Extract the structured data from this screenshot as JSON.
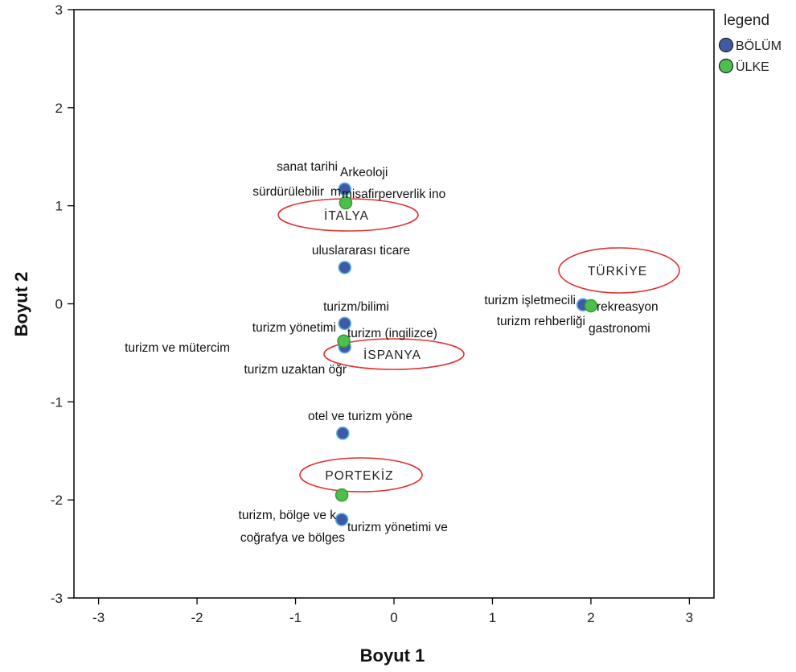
{
  "chart_data": {
    "type": "scatter",
    "xlabel": "Boyut 1",
    "ylabel": "Boyut 2",
    "xlim": [
      -3.25,
      3.25
    ],
    "ylim": [
      -3,
      3
    ],
    "xticks": [
      "-3",
      "-2",
      "-1",
      "0",
      "1",
      "2",
      "3"
    ],
    "yticks": [
      "3",
      "2",
      "1",
      "0",
      "-1",
      "-2",
      "-3"
    ],
    "grid": false,
    "legend": {
      "title": "legend",
      "placement": "top-right",
      "entries": [
        {
          "label": "BÖLÜM",
          "color": "#3e5aa6"
        },
        {
          "label": "ÜLKE",
          "color": "#4cc04c"
        }
      ]
    },
    "series": [
      {
        "name": "BÖLÜM",
        "color": "#3e5aa6",
        "points": [
          {
            "x": -0.5,
            "y": 1.17,
            "label": "sanat tarihi"
          },
          {
            "x": -0.5,
            "y": 1.17,
            "label": "Arkeoloji"
          },
          {
            "x": -0.5,
            "y": 1.17,
            "label": "sürdürülebilir"
          },
          {
            "x": -0.5,
            "y": 1.17,
            "label": "m"
          },
          {
            "x": -0.5,
            "y": 1.17,
            "label": "misafirperverlik ino"
          },
          {
            "x": -0.5,
            "y": 0.37,
            "label": "uluslararası ticare"
          },
          {
            "x": -0.5,
            "y": -0.2,
            "label": "turizm/bilimi"
          },
          {
            "x": -0.5,
            "y": -0.2,
            "label": "turizm yönetimi"
          },
          {
            "x": -0.5,
            "y": -0.2,
            "label": "turizm (ingilizce)"
          },
          {
            "x": -0.5,
            "y": -0.44,
            "label": "turizm ve mütercim"
          },
          {
            "x": -0.5,
            "y": -0.44,
            "label": "turizm uzaktan öğr"
          },
          {
            "x": -0.52,
            "y": -1.32,
            "label": "otel ve turizm yöne"
          },
          {
            "x": -0.53,
            "y": -2.2,
            "label": "turizm, bölge ve k"
          },
          {
            "x": -0.53,
            "y": -2.2,
            "label": "coğrafya ve bölges"
          },
          {
            "x": -0.53,
            "y": -2.2,
            "label": "turizm yönetimi ve"
          },
          {
            "x": 1.92,
            "y": -0.01,
            "label": "turizm işletmecili"
          },
          {
            "x": 1.92,
            "y": -0.01,
            "label": "turizm rehberliği"
          },
          {
            "x": 1.92,
            "y": -0.01,
            "label": "rekreasyon"
          },
          {
            "x": 1.92,
            "y": -0.01,
            "label": "gastronomi"
          }
        ]
      },
      {
        "name": "ÜLKE",
        "color": "#4cc04c",
        "points": [
          {
            "x": -0.49,
            "y": 1.03,
            "label": "İTALYA"
          },
          {
            "x": -0.51,
            "y": -0.38,
            "label": "İSPANYA"
          },
          {
            "x": 2.0,
            "y": -0.02,
            "label": "TÜRKİYE"
          },
          {
            "x": -0.53,
            "y": -1.95,
            "label": "PORTEKİZ"
          }
        ]
      }
    ],
    "annotations": {
      "point_labels": [
        {
          "text": "sanat tarihi"
        },
        {
          "text": "Arkeoloji"
        },
        {
          "text": "sürdürülebilir"
        },
        {
          "text": "m"
        },
        {
          "text": "misafirperverlik ino"
        },
        {
          "text": "uluslararası ticare"
        },
        {
          "text": "turizm/bilimi"
        },
        {
          "text": "turizm yönetimi"
        },
        {
          "text": "turizm (ingilizce)"
        },
        {
          "text": "turizm ve mütercim"
        },
        {
          "text": "turizm uzaktan öğr"
        },
        {
          "text": "otel ve turizm yöne"
        },
        {
          "text": "turizm, bölge ve k"
        },
        {
          "text": "coğrafya ve bölges"
        },
        {
          "text": "turizm yönetimi ve"
        },
        {
          "text": "turizm işletmecili"
        },
        {
          "text": "turizm rehberliği"
        },
        {
          "text": "rekreasyon"
        },
        {
          "text": "gastronomi"
        }
      ],
      "country_labels": [
        {
          "text": "İTALYA",
          "ellipse_color": "#e03030"
        },
        {
          "text": "İSPANYA",
          "ellipse_color": "#e03030"
        },
        {
          "text": "TÜRKİYE",
          "ellipse_color": "#e03030"
        },
        {
          "text": "PORTEKİZ",
          "ellipse_color": "#e03030"
        }
      ]
    }
  }
}
